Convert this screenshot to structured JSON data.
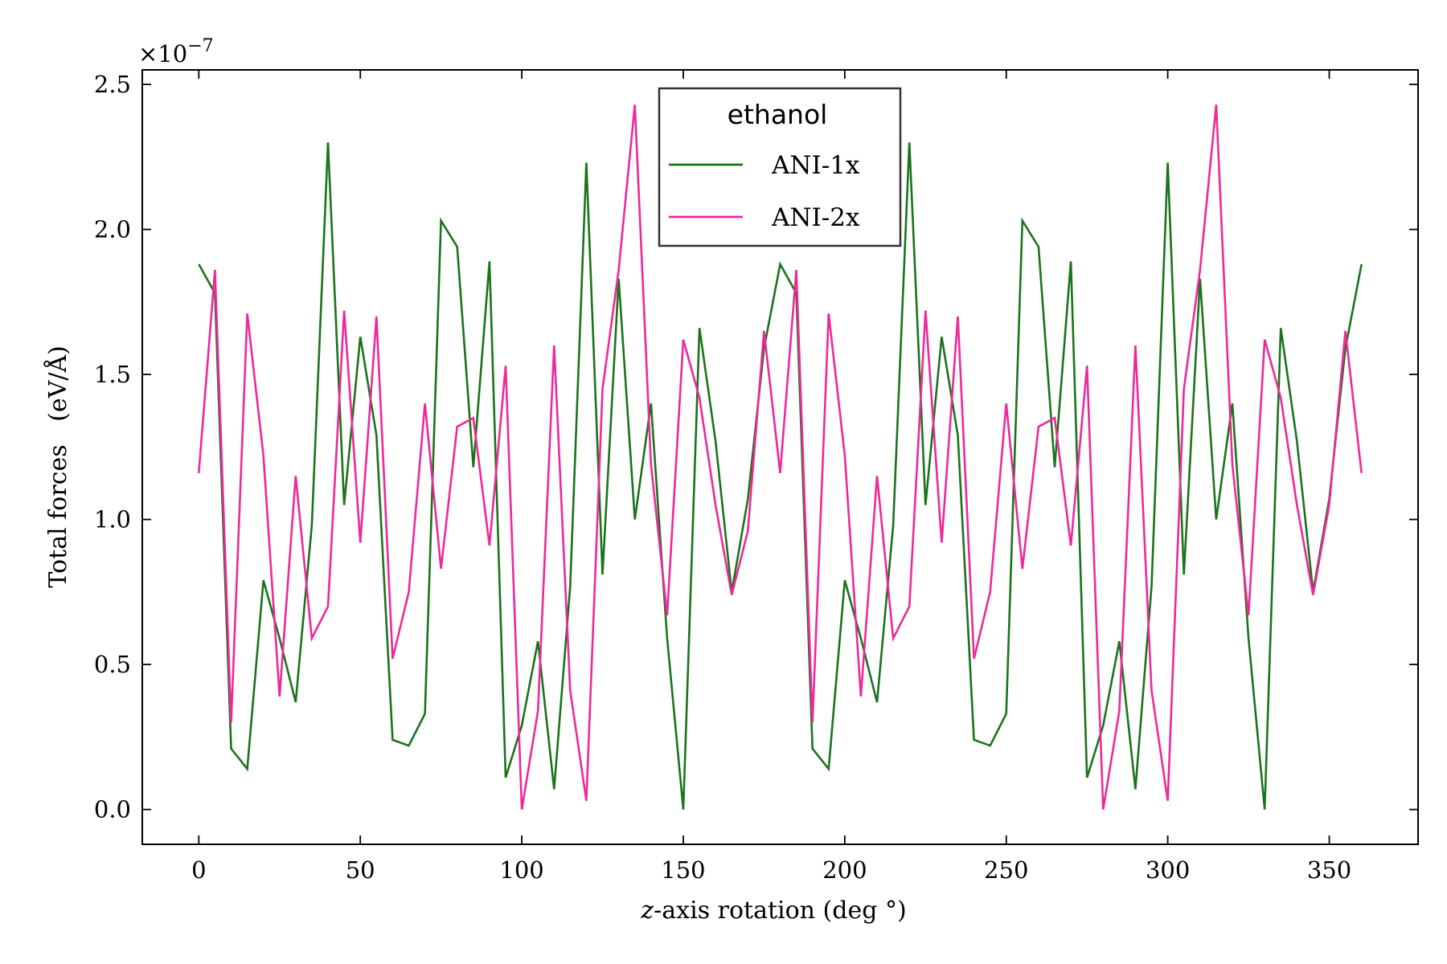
{
  "chart_data": {
    "type": "line",
    "xlabel_var": "z",
    "xlabel_rest": "-axis rotation (deg °)",
    "ylabel": "Total forces   (eV/Å)",
    "y_multiplier": "×10",
    "y_multiplier_exp": "−7",
    "xlim": [
      -17.5,
      377.5
    ],
    "ylim": [
      -0.12,
      2.55
    ],
    "x_ticks": [
      0,
      50,
      100,
      150,
      200,
      250,
      300,
      350
    ],
    "x_tick_labels": [
      "0",
      "50",
      "100",
      "150",
      "200",
      "250",
      "300",
      "350"
    ],
    "y_ticks": [
      0.0,
      0.5,
      1.0,
      1.5,
      2.0,
      2.5
    ],
    "y_tick_labels": [
      "0.0",
      "0.5",
      "1.0",
      "1.5",
      "2.0",
      "2.5"
    ],
    "grid": false,
    "legend": {
      "title": "ethanol",
      "placement": "top-center"
    },
    "x": [
      0,
      5,
      10,
      15,
      20,
      25,
      30,
      35,
      40,
      45,
      50,
      55,
      60,
      65,
      70,
      75,
      80,
      85,
      90,
      95,
      100,
      105,
      110,
      115,
      120,
      125,
      130,
      135,
      140,
      145,
      150,
      155,
      160,
      165,
      170,
      175,
      180,
      185,
      190,
      195,
      200,
      205,
      210,
      215,
      220,
      225,
      230,
      235,
      240,
      245,
      250,
      255,
      260,
      265,
      270,
      275,
      280,
      285,
      290,
      295,
      300,
      305,
      310,
      315,
      320,
      325,
      330,
      335,
      340,
      345,
      350,
      355,
      360
    ],
    "series": [
      {
        "name": "ANI-1x",
        "color": "#1b731b",
        "values": [
          1.88,
          1.78,
          0.21,
          0.14,
          0.79,
          0.59,
          0.37,
          0.98,
          2.3,
          1.05,
          1.63,
          1.29,
          0.24,
          0.22,
          0.33,
          2.03,
          1.94,
          1.18,
          1.89,
          0.11,
          0.29,
          0.58,
          0.07,
          0.77,
          2.23,
          0.81,
          1.83,
          1.0,
          1.4,
          0.59,
          0.0,
          1.66,
          1.27,
          0.75,
          1.07,
          1.59,
          1.88,
          1.78,
          0.21,
          0.14,
          0.79,
          0.59,
          0.37,
          0.98,
          2.3,
          1.05,
          1.63,
          1.29,
          0.24,
          0.22,
          0.33,
          2.03,
          1.94,
          1.18,
          1.89,
          0.11,
          0.29,
          0.58,
          0.07,
          0.77,
          2.23,
          0.81,
          1.83,
          1.0,
          1.4,
          0.59,
          0.0,
          1.66,
          1.27,
          0.75,
          1.07,
          1.59,
          1.88
        ]
      },
      {
        "name": "ANI-2x",
        "color": "#f0289a",
        "values": [
          1.16,
          1.86,
          0.3,
          1.71,
          1.22,
          0.39,
          1.15,
          0.59,
          0.7,
          1.72,
          0.92,
          1.7,
          0.52,
          0.75,
          1.4,
          0.83,
          1.32,
          1.35,
          0.91,
          1.53,
          0.0,
          0.34,
          1.6,
          0.41,
          0.03,
          1.45,
          1.86,
          2.43,
          1.19,
          0.67,
          1.62,
          1.42,
          1.05,
          0.74,
          0.96,
          1.65,
          1.16,
          1.86,
          0.3,
          1.71,
          1.22,
          0.39,
          1.15,
          0.59,
          0.7,
          1.72,
          0.92,
          1.7,
          0.52,
          0.75,
          1.4,
          0.83,
          1.32,
          1.35,
          0.91,
          1.53,
          0.0,
          0.34,
          1.6,
          0.41,
          0.03,
          1.45,
          1.86,
          2.43,
          1.19,
          0.67,
          1.62,
          1.42,
          1.05,
          0.74,
          1.05,
          1.65,
          1.16
        ]
      }
    ]
  }
}
